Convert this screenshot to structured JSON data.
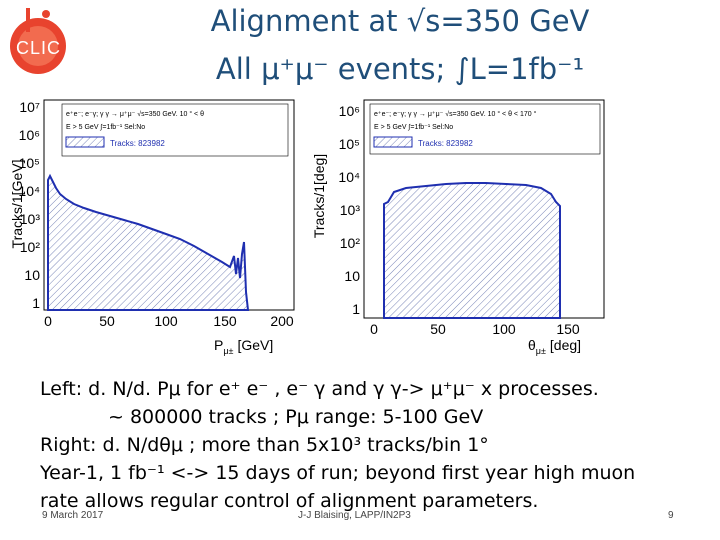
{
  "logo": {
    "text": "CLIC",
    "colors": {
      "ring": "#e8432e",
      "white": "#ffffff"
    }
  },
  "title": {
    "line1": "Alignment at √s=350 GeV",
    "line2": "All μ⁺μ⁻ events; ∫L=1fb⁻¹",
    "color": "#1f4e79"
  },
  "plots": [
    {
      "ylabel": "Tracks/1[GeV]",
      "xlabel": "P",
      "xlabel_sub": "μ±",
      "xunit": "[GeV]",
      "yticks": [
        "1",
        "10",
        "10²",
        "10³",
        "10⁴",
        "10⁵",
        "10⁶",
        "10⁷"
      ],
      "xticks": [
        "0",
        "50",
        "100",
        "150",
        "200"
      ],
      "legend_line1": "e⁺e⁻; e⁻γ; γ γ → μ⁺μ⁻ √s=350 GeV. 10 ° < θ",
      "legend_line2": "E   > 5 GeV         ∫=1fb⁻¹ Sel:No",
      "legend_tracks": "Tracks: 823982"
    },
    {
      "ylabel": "Tracks/1[deg]",
      "xlabel": "θ",
      "xlabel_sub": "μ±",
      "xunit": "[deg]",
      "yticks": [
        "1",
        "10",
        "10²",
        "10³",
        "10⁴",
        "10⁵",
        "10⁶"
      ],
      "xticks": [
        "0",
        "50",
        "100",
        "150"
      ],
      "legend_line1": "e⁺e⁻; e⁻γ; γ γ → μ⁺μ⁻ √s=350 GeV. 10 ° < θ    < 170 °",
      "legend_line2": "E   > 5 GeV         ∫=1fb⁻¹ Sel:No",
      "legend_tracks": "Tracks: 823982"
    }
  ],
  "body": [
    "Left:   d. N/d. Pμ for e⁺ e⁻ , e⁻ γ and γ γ-> μ⁺μ⁻ x processes.",
    "~ 800000 tracks ; Pμ range: 5-100 GeV",
    "Right: d. N/dθμ ;  more than 5x10³ tracks/bin 1°",
    "Year-1, 1 fb⁻¹ <-> 15 days of run; beyond first year high muon",
    "rate allows regular control of alignment parameters."
  ],
  "footer": {
    "date": "9 March 2017",
    "author": "J-J Blaising, LAPP/IN2P3",
    "page": "9"
  }
}
